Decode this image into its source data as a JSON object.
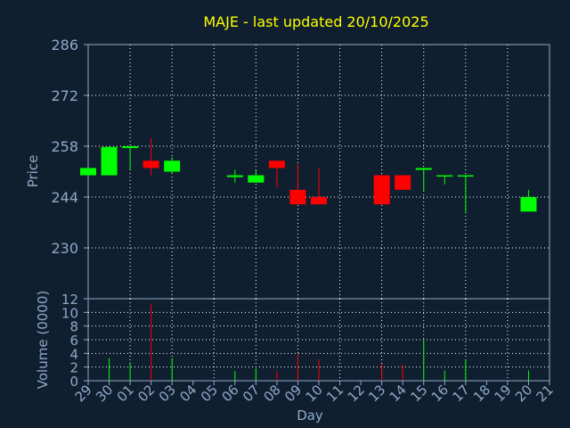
{
  "chart_data": [
    {
      "type": "candlestick",
      "title": "MAJE - last updated 20/10/2025",
      "ylabel": "Price",
      "categories": [
        "29",
        "30",
        "01",
        "02",
        "03",
        "04",
        "05",
        "06",
        "07",
        "08",
        "09",
        "10",
        "11",
        "12",
        "13",
        "14",
        "15",
        "16",
        "17",
        "18",
        "19",
        "20",
        "21"
      ],
      "open": [
        250,
        250,
        257.5,
        254,
        251,
        null,
        null,
        249.5,
        248,
        254,
        246,
        244,
        null,
        null,
        250,
        250,
        251.5,
        249.7,
        249.7,
        null,
        null,
        240,
        null
      ],
      "high": [
        252,
        258,
        258,
        260.2,
        255,
        null,
        null,
        251.5,
        251.5,
        254,
        253,
        252,
        null,
        null,
        250,
        250,
        252,
        250,
        250,
        null,
        null,
        246,
        null
      ],
      "low": [
        250,
        250,
        251.5,
        250,
        250.5,
        null,
        null,
        248,
        248,
        246.7,
        242,
        242,
        null,
        null,
        242,
        246,
        245.5,
        247.5,
        239.5,
        null,
        null,
        240,
        null
      ],
      "close": [
        252,
        257.8,
        258,
        252,
        254,
        null,
        null,
        250,
        250,
        252,
        242,
        242,
        null,
        null,
        242,
        246,
        252,
        250,
        250,
        null,
        null,
        244,
        null
      ],
      "up_color": "#00ff00",
      "down_color": "#ff0000",
      "ylim": [
        216,
        286
      ],
      "yticks": [
        230,
        244,
        258,
        272,
        286
      ],
      "grid": true
    },
    {
      "type": "bar",
      "ylabel": "Volume (0000)",
      "xlabel": "Day",
      "values": [
        null,
        3.3,
        2.7,
        11.3,
        3.3,
        null,
        null,
        1.4,
        1.8,
        1.4,
        3.9,
        3.1,
        null,
        null,
        2.5,
        2.3,
        6,
        1.5,
        3.1,
        null,
        null,
        1.5,
        null
      ],
      "ylim": [
        0,
        12
      ],
      "yticks": [
        0,
        2,
        4,
        6,
        8,
        10,
        12
      ],
      "grid": true
    }
  ]
}
